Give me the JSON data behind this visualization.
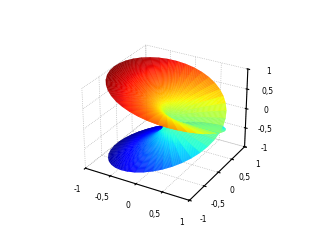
{
  "colormap": "jet",
  "n_r": 50,
  "n_theta": 80,
  "r_min": 0.001,
  "r_max": 1.0,
  "theta_min": 0.0,
  "theta_max": 12.566370614359172,
  "elev": 28,
  "azim": -60,
  "xlim": [
    -1,
    1
  ],
  "ylim": [
    -1,
    1
  ],
  "zlim": [
    -1,
    1
  ],
  "xticks": [
    -1,
    -0.5,
    0,
    0.5,
    1
  ],
  "yticks": [
    -1,
    -0.5,
    0,
    0.5,
    1
  ],
  "zticks": [
    -1,
    -0.5,
    0,
    0.5,
    1
  ],
  "xticklabels": [
    "-1",
    "-0,5",
    "0",
    "0,5",
    "1"
  ],
  "yticklabels": [
    "-1",
    "-0,5",
    "0",
    "0,5",
    "1"
  ],
  "zticklabels": [
    "-1",
    "-0,5",
    "0",
    "0,5",
    "1"
  ],
  "grid_color": "#aaaaaa",
  "background_color": "#ffffff",
  "line_width": 0.2,
  "alpha": 1.0
}
